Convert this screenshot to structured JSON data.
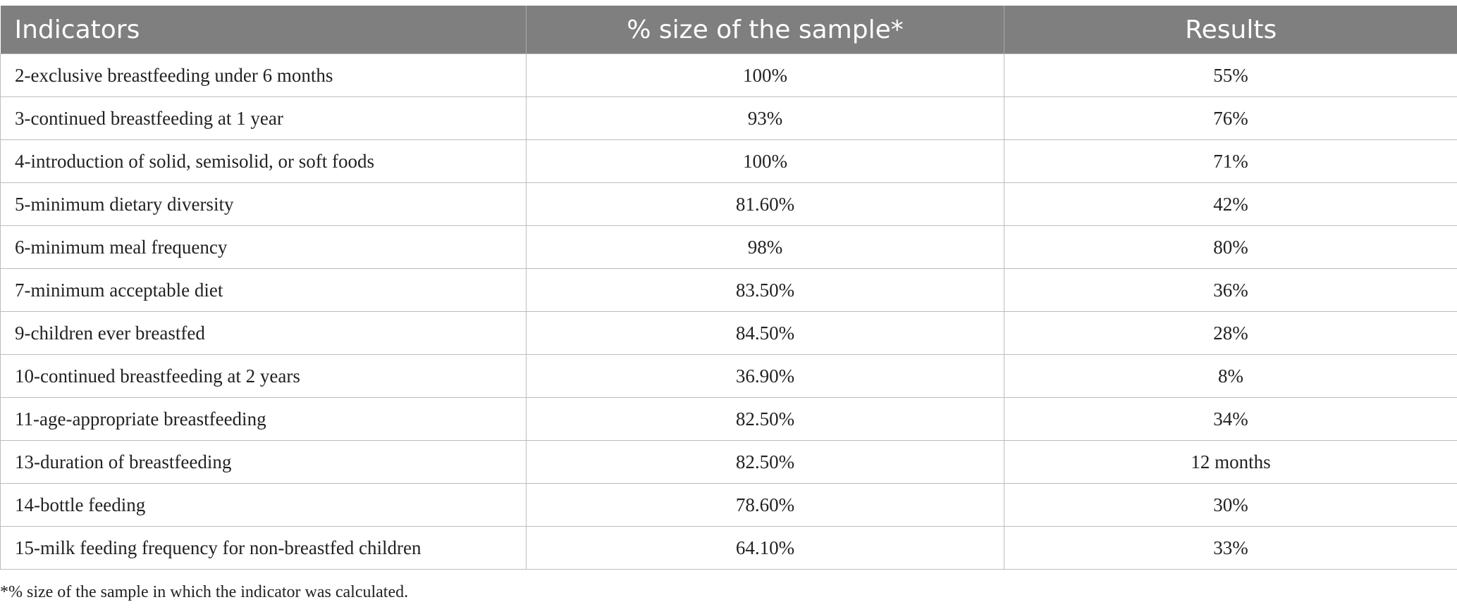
{
  "table": {
    "headers": [
      "Indicators",
      "% size of the sample*",
      "Results"
    ],
    "rows": [
      [
        "2-exclusive breastfeeding under 6 months",
        "100%",
        "55%"
      ],
      [
        "3-continued breastfeeding at 1 year",
        "93%",
        "76%"
      ],
      [
        "4-introduction of solid, semisolid, or soft foods",
        "100%",
        "71%"
      ],
      [
        "5-minimum dietary diversity",
        "81.60%",
        "42%"
      ],
      [
        "6-minimum meal frequency",
        "98%",
        "80%"
      ],
      [
        "7-minimum acceptable diet",
        "83.50%",
        "36%"
      ],
      [
        "9-children ever breastfed",
        "84.50%",
        "28%"
      ],
      [
        "10-continued breastfeeding at 2 years",
        "36.90%",
        "8%"
      ],
      [
        "11-age-appropriate breastfeeding",
        "82.50%",
        "34%"
      ],
      [
        "13-duration of breastfeeding",
        "82.50%",
        "12 months"
      ],
      [
        "14-bottle feeding",
        "78.60%",
        "30%"
      ],
      [
        "15-milk feeding frequency for non-breastfed children",
        "64.10%",
        "33%"
      ]
    ]
  },
  "footnote": "*% size of the sample in which the indicator was calculated."
}
